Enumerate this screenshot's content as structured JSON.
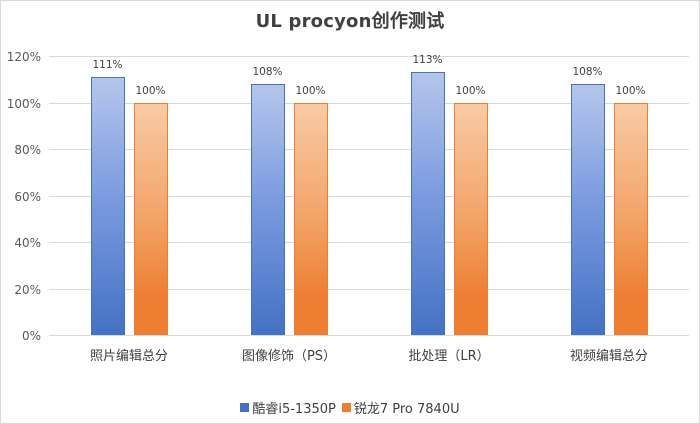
{
  "chart_data": {
    "type": "bar",
    "title": "UL procyon创作测试",
    "categories": [
      "照片编辑总分",
      "图像修饰（PS）",
      "批处理（LR）",
      "视频编辑总分"
    ],
    "series": [
      {
        "name": "酷睿i5-1350P",
        "values": [
          111,
          108,
          113,
          108
        ],
        "labels": [
          "111%",
          "108%",
          "113%",
          "108%"
        ],
        "color": "#4472c4"
      },
      {
        "name": "锐龙7 Pro 7840U",
        "values": [
          100,
          100,
          100,
          100
        ],
        "labels": [
          "100%",
          "100%",
          "100%",
          "100%"
        ],
        "color": "#ed7d31"
      }
    ],
    "xlabel": "",
    "ylabel": "",
    "ylim": [
      0,
      120
    ],
    "yticks": [
      "0%",
      "20%",
      "40%",
      "60%",
      "80%",
      "100%",
      "120%"
    ],
    "grid": true,
    "legend_position": "bottom"
  }
}
